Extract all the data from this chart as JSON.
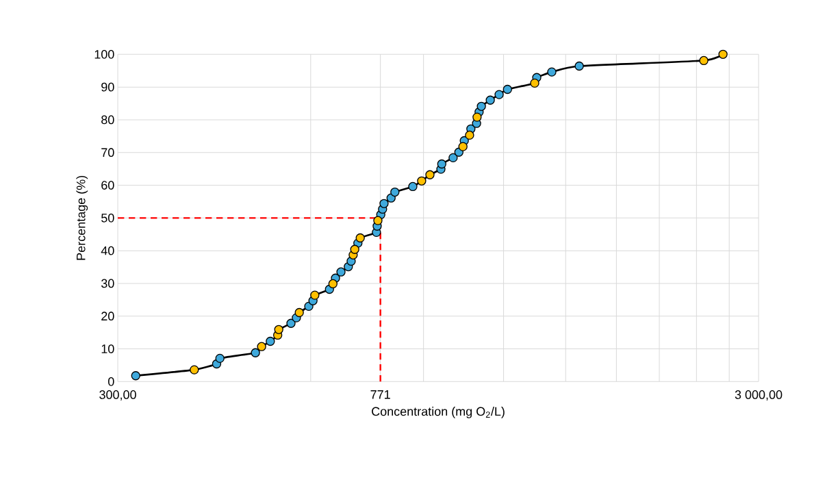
{
  "chart_data": {
    "type": "scatter",
    "xlabel": "Concentration (mg O$_{2}$/L)",
    "ylabel": "Percentage (%)",
    "log": "x",
    "grid": true,
    "xlim": [
      300,
      3000
    ],
    "ylim": [
      0,
      100
    ],
    "xticks": [
      {
        "value": 300,
        "label": "300,00"
      },
      {
        "value": 600,
        "label": null
      },
      {
        "value": 771,
        "label": "771"
      },
      {
        "value": 900,
        "label": null
      },
      {
        "value": 1200,
        "label": null
      },
      {
        "value": 1500,
        "label": null
      },
      {
        "value": 1800,
        "label": null
      },
      {
        "value": 2100,
        "label": null
      },
      {
        "value": 2400,
        "label": null
      },
      {
        "value": 2700,
        "label": null
      },
      {
        "value": 3000,
        "label": "3 000,00"
      }
    ],
    "yticks": [
      0,
      10,
      20,
      30,
      40,
      50,
      60,
      70,
      80,
      90,
      100
    ],
    "ref_lines": [
      {
        "axis": "y",
        "value": 50,
        "color": "#ff0000",
        "line_style": "dashed"
      },
      {
        "axis": "x",
        "value": 771,
        "color": "#ff0000",
        "line_style": "dashed"
      }
    ],
    "series": [
      {
        "type": "line",
        "color": "#000000",
        "x": [
          320,
          395,
          428,
          433,
          492,
          503,
          519,
          533,
          535,
          559,
          570,
          576,
          596,
          605,
          609,
          642,
          650,
          656,
          669,
          687,
          694,
          699,
          703,
          711,
          717,
          760,
          762,
          764,
          772,
          777,
          781,
          801,
          812,
          866,
          894,
          921,
          958,
          961,
          1001,
          1022,
          1037,
          1042,
          1062,
          1067,
          1089,
          1091,
          1099,
          1108,
          1144,
          1181,
          1217,
          1342,
          1352,
          1427,
          1575,
          2464,
          2640
        ],
        "values": [
          1.8,
          3.6,
          5.4,
          7.1,
          8.8,
          10.7,
          12.3,
          14.2,
          15.9,
          17.8,
          19.5,
          21.1,
          23.0,
          24.7,
          26.4,
          28.2,
          29.9,
          31.6,
          33.5,
          35.1,
          36.8,
          38.7,
          40.4,
          42.3,
          43.9,
          45.6,
          47.5,
          49.2,
          51.0,
          52.7,
          54.4,
          56.1,
          57.9,
          59.6,
          61.3,
          63.2,
          64.9,
          66.5,
          68.4,
          70.1,
          71.8,
          73.6,
          75.3,
          77.2,
          78.9,
          80.8,
          82.4,
          84.1,
          86.0,
          87.7,
          89.3,
          91.2,
          92.9,
          94.6,
          96.4,
          98.1,
          100
        ]
      },
      {
        "color": "#3fa9dc",
        "x": [
          320,
          428,
          433,
          492,
          519,
          559,
          570,
          596,
          605,
          642,
          656,
          669,
          687,
          694,
          711,
          760,
          762,
          772,
          777,
          781,
          801,
          812,
          866,
          958,
          961,
          1001,
          1022,
          1042,
          1067,
          1089,
          1099,
          1108,
          1144,
          1181,
          1217,
          1352,
          1427,
          1575
        ],
        "values": [
          1.8,
          5.4,
          7.1,
          8.8,
          12.3,
          17.8,
          19.5,
          23.0,
          24.7,
          28.2,
          31.6,
          33.5,
          35.1,
          36.8,
          42.3,
          45.6,
          47.5,
          51.0,
          52.7,
          54.4,
          56.1,
          57.9,
          59.6,
          64.9,
          66.5,
          68.4,
          70.1,
          73.6,
          77.2,
          78.9,
          82.4,
          84.1,
          86.0,
          87.7,
          89.3,
          92.9,
          94.6,
          96.4
        ]
      },
      {
        "color": "#ffc000",
        "x": [
          395,
          503,
          533,
          535,
          576,
          609,
          650,
          699,
          703,
          717,
          764,
          894,
          921,
          1037,
          1062,
          1091,
          1342,
          2464,
          2640
        ],
        "values": [
          3.6,
          10.7,
          14.2,
          15.9,
          21.1,
          26.4,
          29.9,
          38.7,
          40.4,
          43.9,
          49.2,
          61.3,
          63.2,
          71.8,
          75.3,
          80.8,
          91.2,
          98.1,
          100
        ]
      }
    ]
  }
}
